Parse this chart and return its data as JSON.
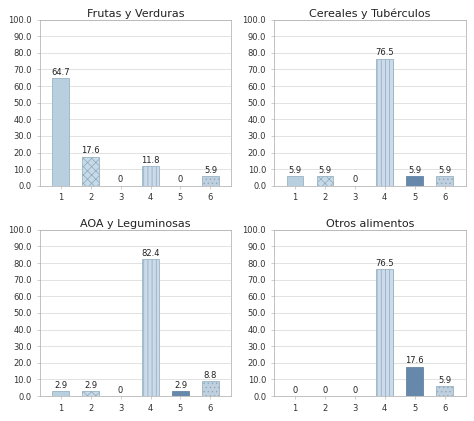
{
  "subplots": [
    {
      "title": "Frutas y Verduras",
      "values": [
        64.7,
        17.6,
        0,
        11.8,
        0,
        5.9
      ]
    },
    {
      "title": "Cereales y Tubérculos",
      "values": [
        5.9,
        5.9,
        0,
        76.5,
        5.9,
        5.9
      ]
    },
    {
      "title": "AOA y Leguminosas",
      "values": [
        2.9,
        2.9,
        0,
        82.4,
        2.9,
        8.8
      ]
    },
    {
      "title": "Otros alimentos",
      "values": [
        0.0,
        0.0,
        0,
        76.5,
        17.6,
        5.9
      ]
    }
  ],
  "categories": [
    1,
    2,
    3,
    4,
    5,
    6
  ],
  "ylim": [
    0,
    100
  ],
  "yticks": [
    0.0,
    10.0,
    20.0,
    30.0,
    40.0,
    50.0,
    60.0,
    70.0,
    80.0,
    90.0,
    100.0
  ],
  "bar_styles": [
    {
      "facecolor": "#b8cfe0",
      "hatch": null,
      "edgecolor": "#8aaabb"
    },
    {
      "facecolor": "#c8dae8",
      "hatch": "xxxx",
      "edgecolor": "#8aaabb"
    },
    {
      "facecolor": "#c8dae8",
      "hatch": null,
      "edgecolor": "#8aaabb"
    },
    {
      "facecolor": "#ccdaeb",
      "hatch": "||||",
      "edgecolor": "#8aaabb"
    },
    {
      "facecolor": "#6688aa",
      "hatch": null,
      "edgecolor": "#557799"
    },
    {
      "facecolor": "#c0d0df",
      "hatch": "....",
      "edgecolor": "#8aaabb"
    }
  ],
  "background_color": "#ffffff",
  "title_fontsize": 8,
  "tick_fontsize": 6,
  "bar_width": 0.55,
  "label_fontsize": 6
}
